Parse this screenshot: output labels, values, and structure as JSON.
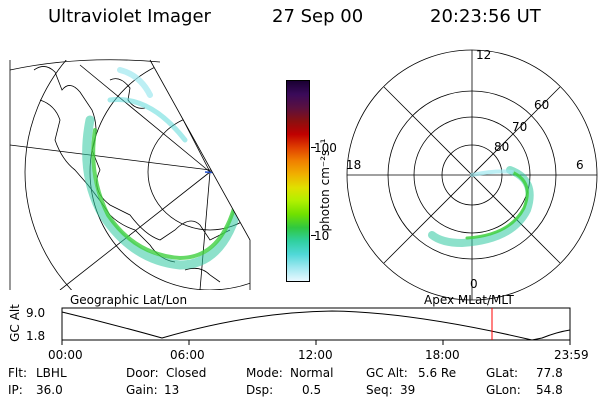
{
  "header": {
    "app_title": "Ultraviolet Imager",
    "date": "27 Sep 00",
    "time": "20:23:56 UT"
  },
  "colorbar": {
    "unit_label": "photon cm⁻²s⁻¹",
    "tick_100": "100",
    "tick_10": "10",
    "colors": [
      "#1a0033",
      "#3a0a5a",
      "#5a1040",
      "#8a1010",
      "#c00000",
      "#e04000",
      "#f08000",
      "#f0b000",
      "#e0e000",
      "#b0f000",
      "#70e000",
      "#30c840",
      "#30d0a0",
      "#50d8d8",
      "#a0e8f0",
      "#e8f8ff"
    ]
  },
  "left_map": {
    "label": "Geographic Lat/Lon"
  },
  "right_map": {
    "label": "Apex MLat/MLT",
    "mlt_12": "12",
    "mlt_18": "18",
    "mlt_6": "6",
    "mlt_0": "0",
    "lat_60": "60",
    "lat_70": "70",
    "lat_80": "80"
  },
  "timeline": {
    "axis_title": "GC Alt",
    "y_top": "9.0",
    "y_bottom": "1.8",
    "ticks": [
      "00:00",
      "06:00",
      "12:00",
      "18:00",
      "23:59"
    ],
    "marker_color": "#ff0000"
  },
  "info": {
    "filter_label": "Flt:",
    "filter_value": "LBHL",
    "door_label": "Door:",
    "door_value": "Closed",
    "mode_label": "Mode:",
    "mode_value": "Normal",
    "gcalt_label": "GC Alt:",
    "gcalt_value": "5.6 Re",
    "glat_label": "GLat:",
    "glat_value": "77.8",
    "ip_label": "IP:",
    "ip_value": "36.0",
    "gain_label": "Gain:",
    "gain_value": "13",
    "dsp_label": "Dsp:",
    "dsp_value": "0.5",
    "seq_label": "Seq:",
    "seq_value": "39",
    "glon_label": "GLon:",
    "glon_value": "54.8"
  }
}
